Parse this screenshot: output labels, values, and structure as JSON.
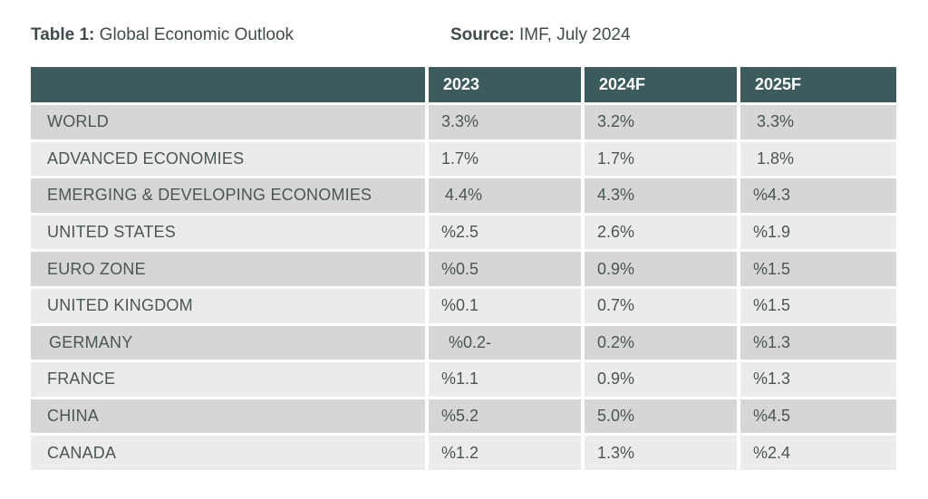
{
  "caption": {
    "table_label": "Table 1:",
    "table_title": "Global Economic Outlook",
    "source_label": "Source:",
    "source_value": "IMF, July 2024"
  },
  "columns": [
    "",
    "2023",
    "2024F",
    "2025F"
  ],
  "rows": [
    {
      "name": "WORLD",
      "y2023": "3.3%",
      "y2024": "3.2%",
      "y2025": "3.3%"
    },
    {
      "name": "ADVANCED ECONOMIES",
      "y2023": "1.7%",
      "y2024": "1.7%",
      "y2025": "1.8%"
    },
    {
      "name": "EMERGING & DEVELOPING ECONOMIES",
      "y2023": "4.4%",
      "y2024": "4.3%",
      "y2025": "%4.3"
    },
    {
      "name": "UNITED STATES",
      "y2023": "%2.5",
      "y2024": "2.6%",
      "y2025": "%1.9"
    },
    {
      "name": "EURO ZONE",
      "y2023": "%0.5",
      "y2024": "0.9%",
      "y2025": "%1.5"
    },
    {
      "name": "UNITED KINGDOM",
      "y2023": "%0.1",
      "y2024": "0.7%",
      "y2025": "%1.5"
    },
    {
      "name": "GERMANY",
      "y2023": "%0.2-",
      "y2024": "0.2%",
      "y2025": "%1.3"
    },
    {
      "name": "FRANCE",
      "y2023": "%1.1",
      "y2024": "0.9%",
      "y2025": "%1.3"
    },
    {
      "name": "CHINA",
      "y2023": "%5.2",
      "y2024": "5.0%",
      "y2025": "%4.5"
    },
    {
      "name": "CANADA",
      "y2023": "%1.2",
      "y2024": "1.3%",
      "y2025": "%2.4"
    }
  ],
  "colors": {
    "header_bg": "#3b5b5c",
    "row_dark": "#d6d6d6",
    "row_light": "#ebebeb"
  }
}
